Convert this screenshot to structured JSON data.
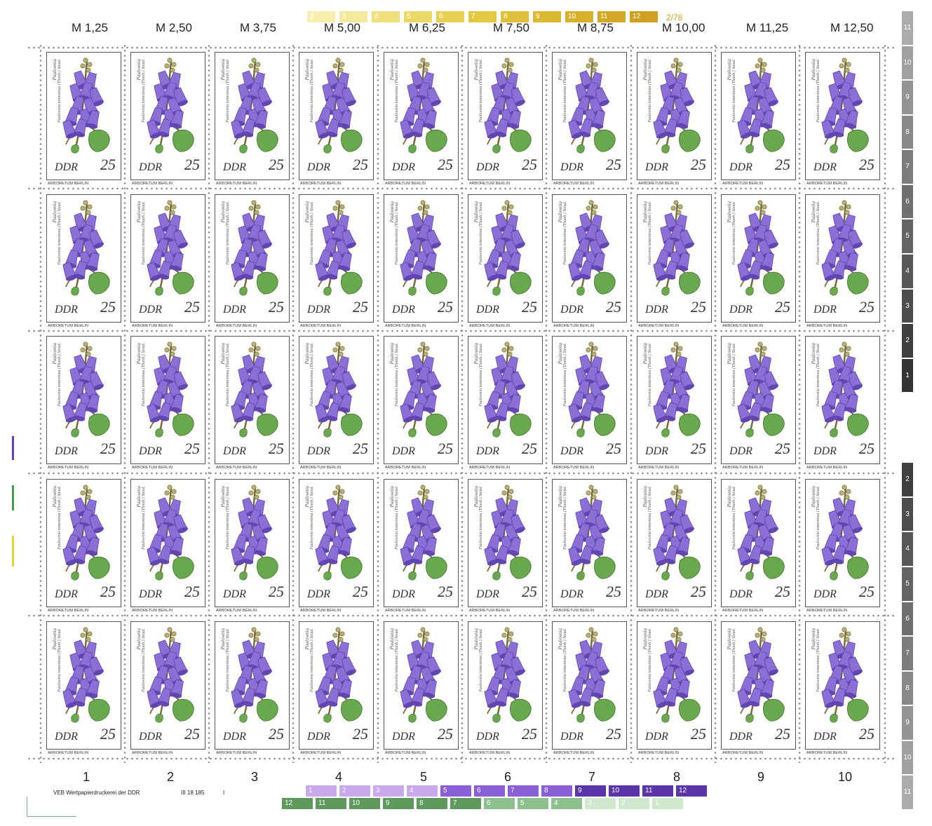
{
  "sheet": {
    "price_labels": [
      "M 1,25",
      "M 2,50",
      "M 3,75",
      "M 5,00",
      "M 6,25",
      "M 7,50",
      "M 8,75",
      "M 10,00",
      "M 11,25",
      "M 12,50"
    ],
    "column_numbers": [
      "1",
      "2",
      "3",
      "4",
      "5",
      "6",
      "7",
      "8",
      "9",
      "10"
    ],
    "print_code": "2/78",
    "printer": "VEB Wertpapierdruckerei der DDR",
    "plate_number": "III 18 185",
    "plate_mark": "I",
    "top_color_bar": [
      "2",
      "3",
      "4",
      "5",
      "6",
      "7",
      "8",
      "9",
      "10",
      "11",
      "12"
    ],
    "bottom_violet_bar": [
      "1",
      "2",
      "3",
      "4",
      "5",
      "6",
      "7",
      "8",
      "9",
      "10",
      "11",
      "12"
    ],
    "bottom_green_bar": [
      "12",
      "11",
      "10",
      "9",
      "8",
      "7",
      "6",
      "5",
      "4",
      "3",
      "2",
      "1"
    ],
    "right_gray_strip": [
      "11",
      "10",
      "9",
      "8",
      "7",
      "6",
      "5",
      "4",
      "3",
      "2",
      "1",
      "",
      "",
      "2",
      "3",
      "4",
      "5",
      "6",
      "7",
      "8",
      "9",
      "10",
      "11"
    ]
  },
  "stamp": {
    "country": "DDR",
    "value": "25",
    "imprint": "ARBORETUM BERLIN",
    "latin_short": "Paulownia",
    "latin_long": "Paulownia tomentosa (Thunb.) Steud.",
    "rows": 5,
    "cols": 10
  },
  "colors": {
    "flower": "#8a6fd6",
    "flower_dark": "#5f46b0",
    "leaf": "#6aa84f",
    "stem": "#7a6a3a",
    "violet_bar": "#6a3fb8",
    "green_bar": "#6aa56a",
    "yellow_bar": "#e6cf3a",
    "gray_strip": "#6b6b6b"
  }
}
